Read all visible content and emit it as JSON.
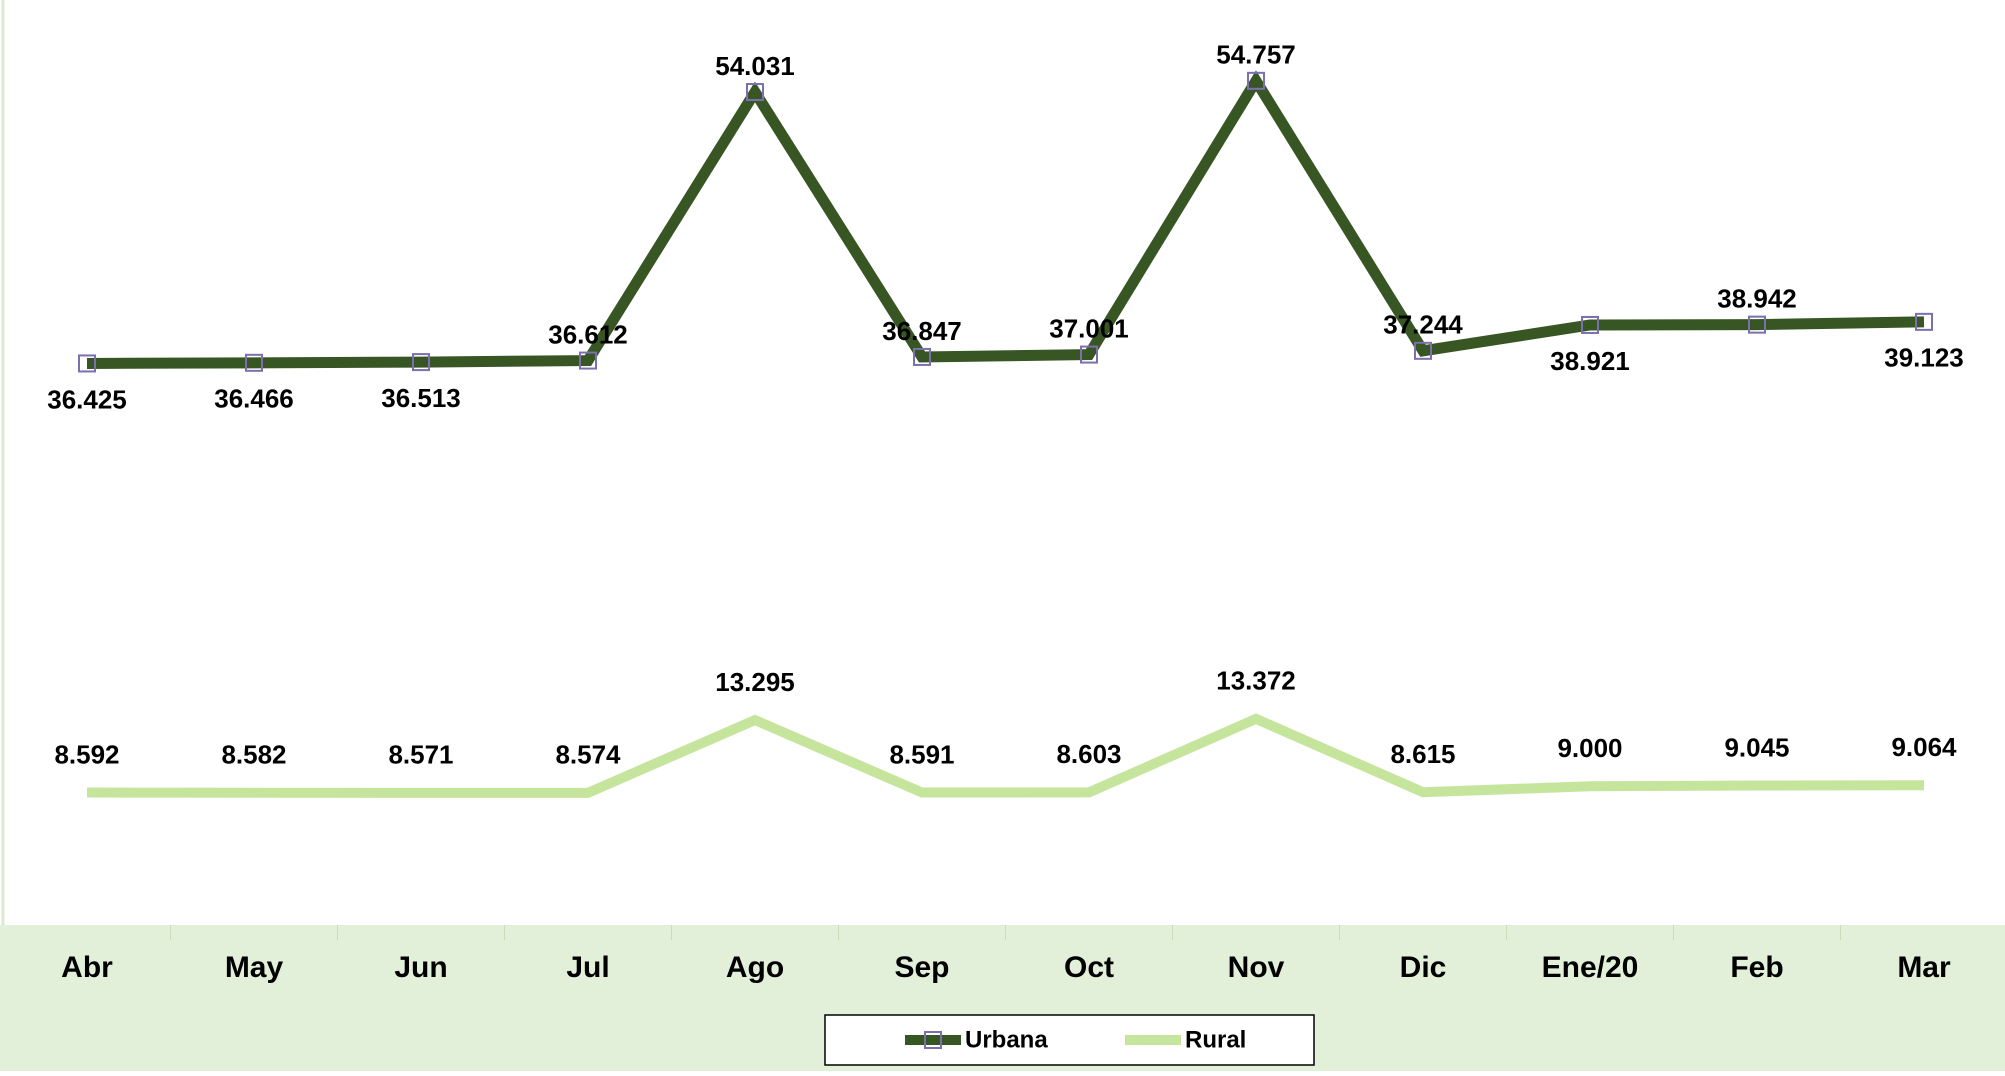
{
  "chart_data": {
    "type": "line",
    "categories": [
      "Abr",
      "May",
      "Jun",
      "Jul",
      "Ago",
      "Sep",
      "Oct",
      "Nov",
      "Dic",
      "Ene/20",
      "Feb",
      "Mar"
    ],
    "series": [
      {
        "name": "Urbana",
        "color": "#375623",
        "marker_color": "#7b6fb0",
        "values": [
          36425,
          36466,
          36513,
          36612,
          54031,
          36847,
          37001,
          54757,
          37244,
          38921,
          38942,
          39123
        ],
        "value_labels": [
          "36.425",
          "36.466",
          "36.513",
          "36.612",
          "54.031",
          "36.847",
          "37.001",
          "54.757",
          "37.244",
          "38.921",
          "38.942",
          "39.123"
        ]
      },
      {
        "name": "Rural",
        "color": "#c5e59d",
        "values": [
          8592,
          8582,
          8571,
          8574,
          13295,
          8591,
          8603,
          13372,
          8615,
          9000,
          9045,
          9064
        ],
        "value_labels": [
          "8.592",
          "8.582",
          "8.571",
          "8.574",
          "13.295",
          "8.591",
          "8.603",
          "13.372",
          "8.615",
          "9.000",
          "9.045",
          "9.064"
        ]
      }
    ],
    "ylim": [
      0,
      60000
    ],
    "legend": "bottom"
  }
}
